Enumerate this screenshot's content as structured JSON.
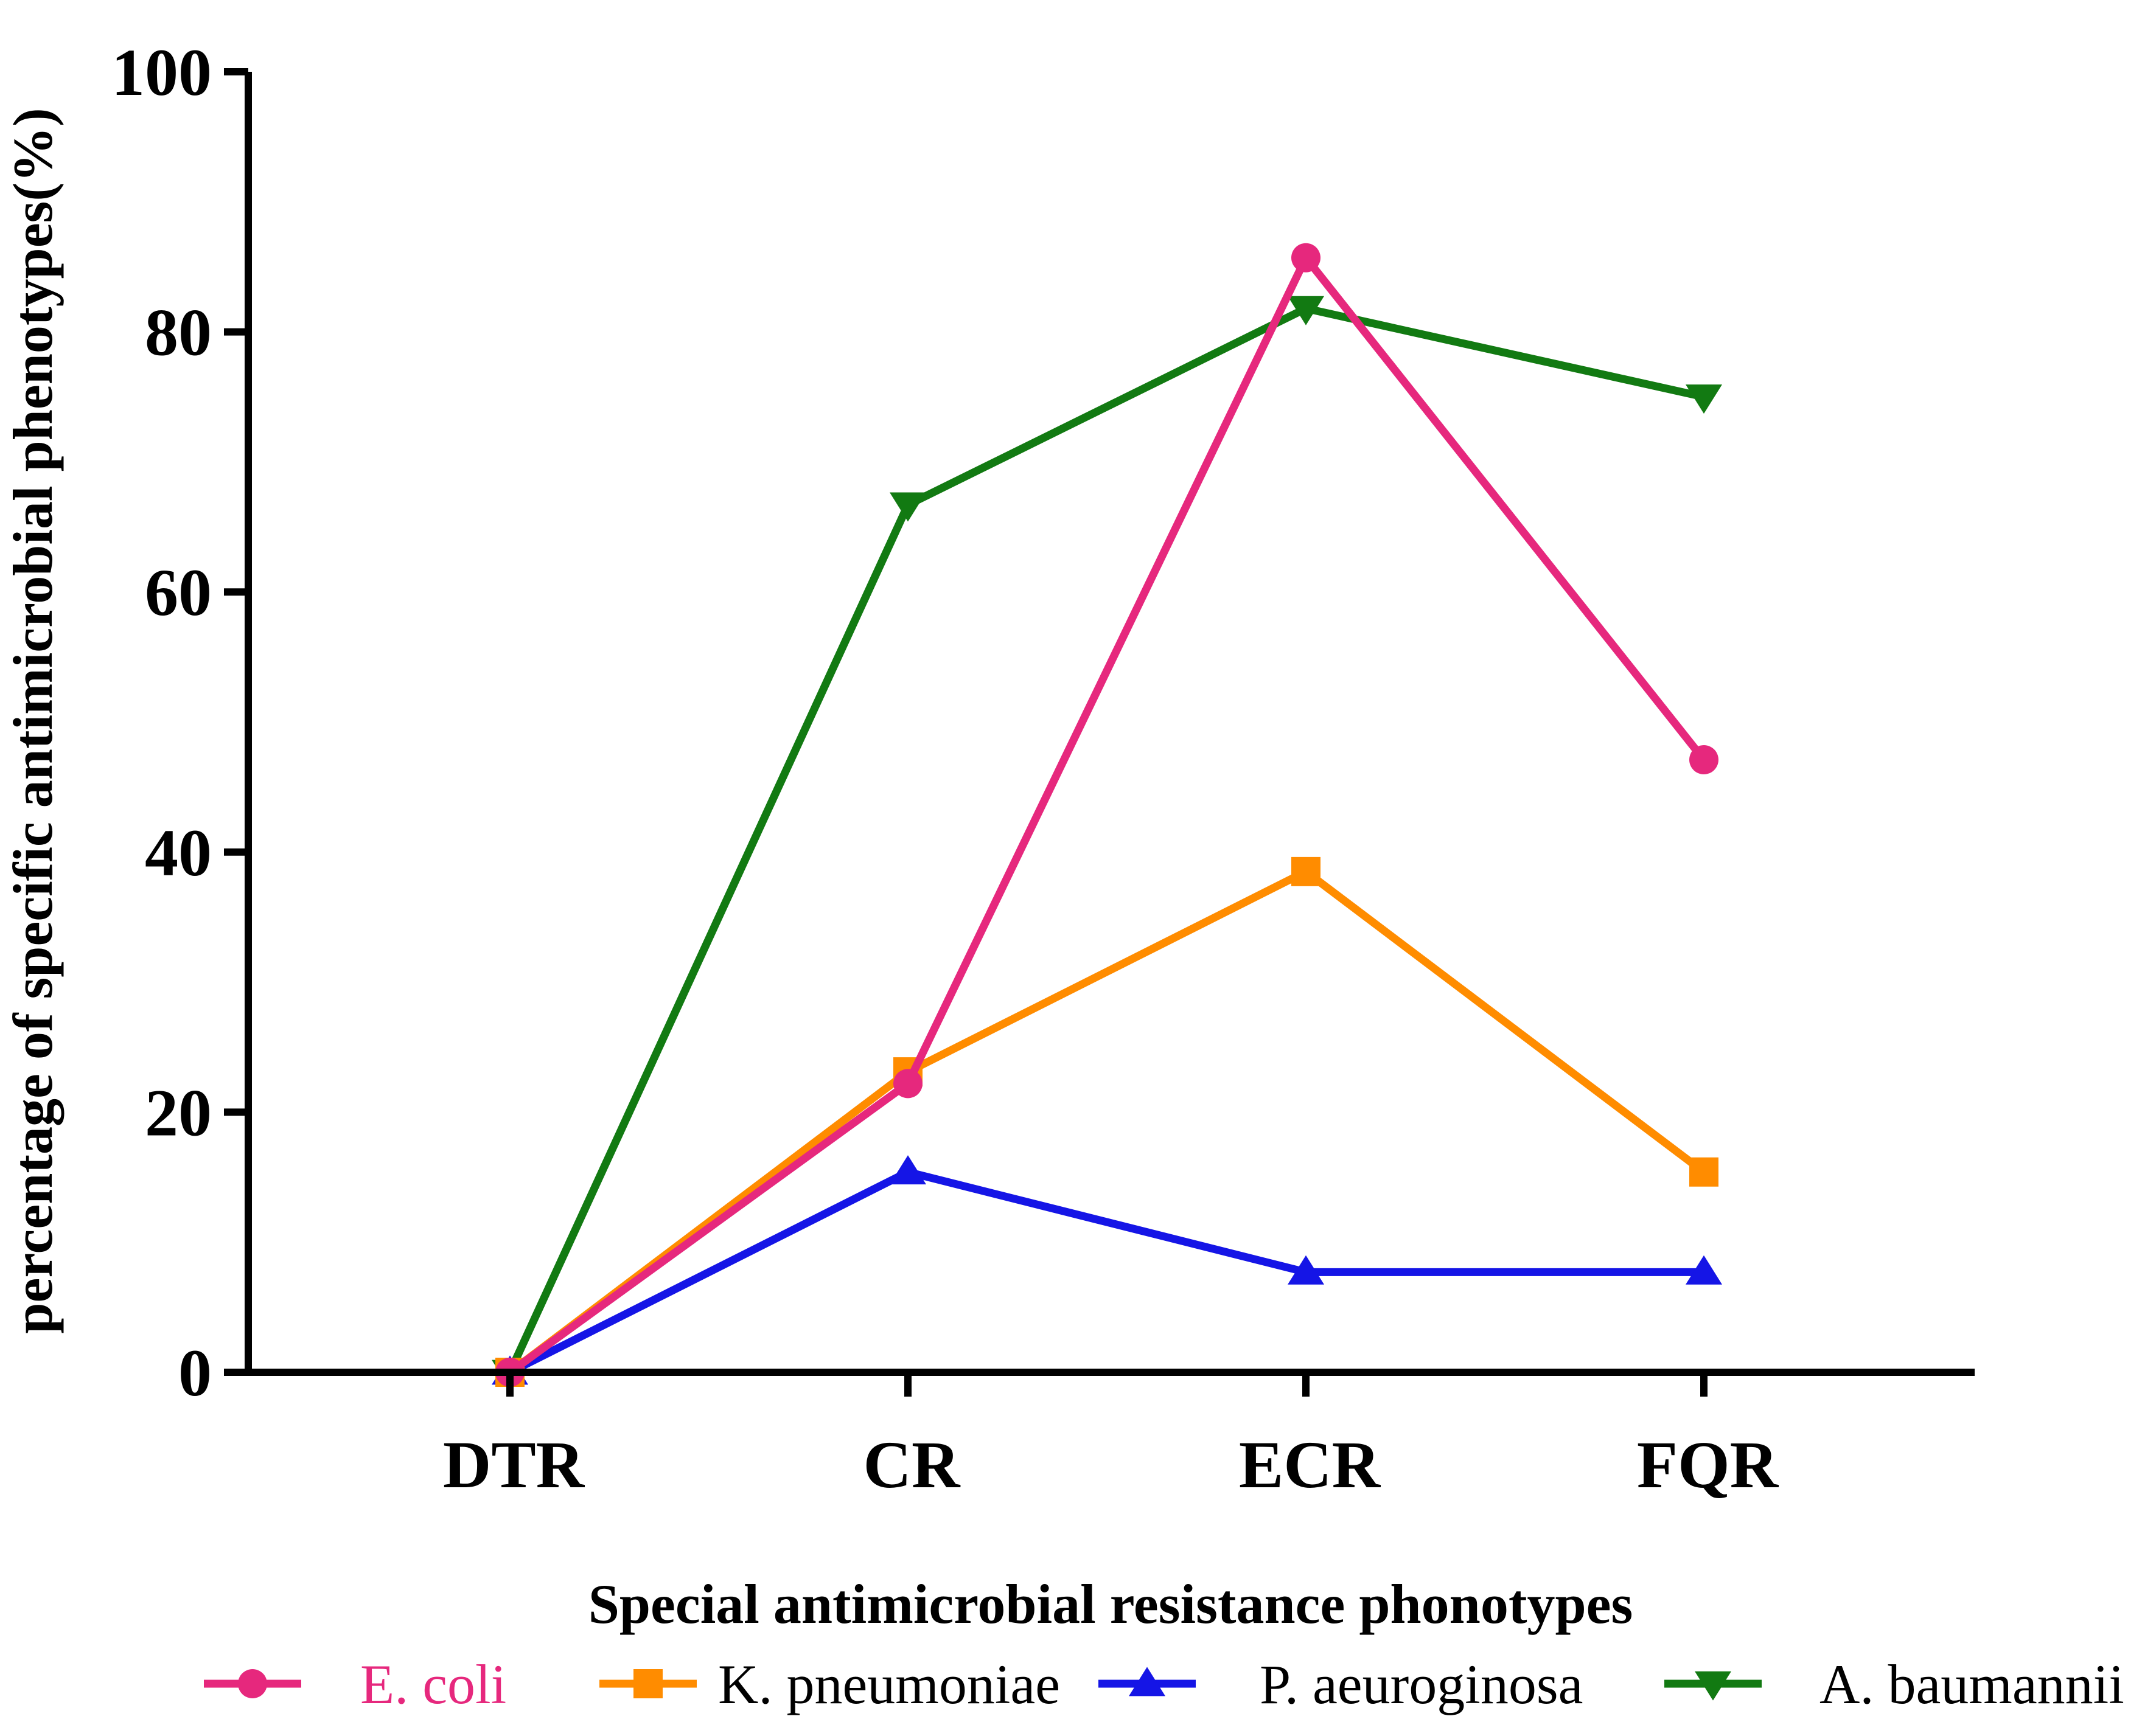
{
  "chart_data": {
    "type": "line",
    "title": "",
    "xlabel": "Special antimicrobial resistance phonotypes",
    "ylabel": "percentage of specific antimicrobial phenotypes(%)",
    "categories": [
      "DTR",
      "CR",
      "ECR",
      "FQR"
    ],
    "ylim": [
      0,
      100
    ],
    "yticks": [
      "0",
      "20",
      "40",
      "60",
      "80",
      "100"
    ],
    "legend_position": "bottom",
    "series": [
      {
        "name": "E. coli",
        "color": "#e6287d",
        "marker": "circle",
        "label_color": "#e6287d",
        "values": [
          0,
          22.2,
          85.7,
          47.1
        ]
      },
      {
        "name": "K. pneumoniae",
        "color": "#ff8c00",
        "marker": "square",
        "label_color": "#000000",
        "values": [
          0,
          23.1,
          38.5,
          15.4
        ]
      },
      {
        "name": "P. aeuroginosa",
        "color": "#1515e6",
        "marker": "triangle-up",
        "label_color": "#000000",
        "values": [
          0,
          15.4,
          7.7,
          7.7
        ]
      },
      {
        "name": "A. baumannii",
        "color": "#127a12",
        "marker": "triangle-down",
        "label_color": "#000000",
        "values": [
          0,
          66.7,
          81.8,
          75.0
        ]
      }
    ]
  }
}
